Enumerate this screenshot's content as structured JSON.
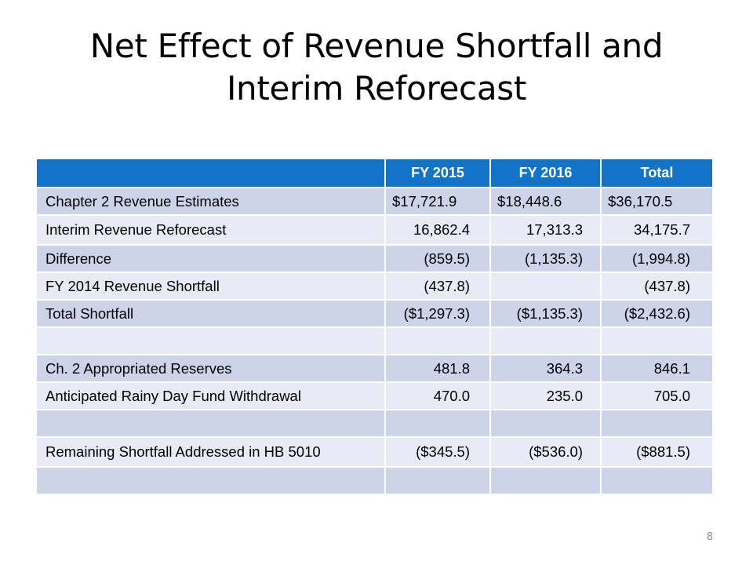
{
  "slide": {
    "title_line1": "Net Effect of Revenue Shortfall and",
    "title_line2": "Interim Reforecast",
    "page_number": "8"
  },
  "table": {
    "headers": [
      "",
      "FY 2015",
      "FY 2016",
      "Total"
    ],
    "rows": [
      {
        "label": "Chapter 2 Revenue Estimates",
        "fy2015": "$17,721.9",
        "fy2016": "$18,448.6",
        "total": "$36,170.5"
      },
      {
        "label": "Interim Revenue Reforecast",
        "fy2015": "16,862.4",
        "fy2016": "17,313.3",
        "total": "34,175.7"
      },
      {
        "label": "Difference",
        "fy2015": "(859.5)",
        "fy2016": "(1,135.3)",
        "total": "(1,994.8)"
      },
      {
        "label": "FY 2014 Revenue Shortfall",
        "fy2015": "(437.8)",
        "fy2016": "",
        "total": "(437.8)"
      },
      {
        "label": "Total Shortfall",
        "fy2015": "($1,297.3)",
        "fy2016": "($1,135.3)",
        "total": "($2,432.6)"
      },
      {
        "label": "",
        "fy2015": "",
        "fy2016": "",
        "total": ""
      },
      {
        "label": "Ch. 2 Appropriated Reserves",
        "fy2015": "481.8",
        "fy2016": "364.3",
        "total": "846.1"
      },
      {
        "label": "Anticipated Rainy Day Fund Withdrawal",
        "fy2015": "470.0",
        "fy2016": "235.0",
        "total": "705.0"
      },
      {
        "label": "",
        "fy2015": "",
        "fy2016": "",
        "total": ""
      },
      {
        "label": "Remaining Shortfall Addressed in HB 5010",
        "fy2015": "($345.5)",
        "fy2016": "($536.0)",
        "total": "($881.5)"
      },
      {
        "label": "",
        "fy2015": "",
        "fy2016": "",
        "total": ""
      }
    ]
  },
  "colors": {
    "header_bg": "#1274c8",
    "row_dark": "#cdd4e9",
    "row_light": "#e8ebf5"
  }
}
